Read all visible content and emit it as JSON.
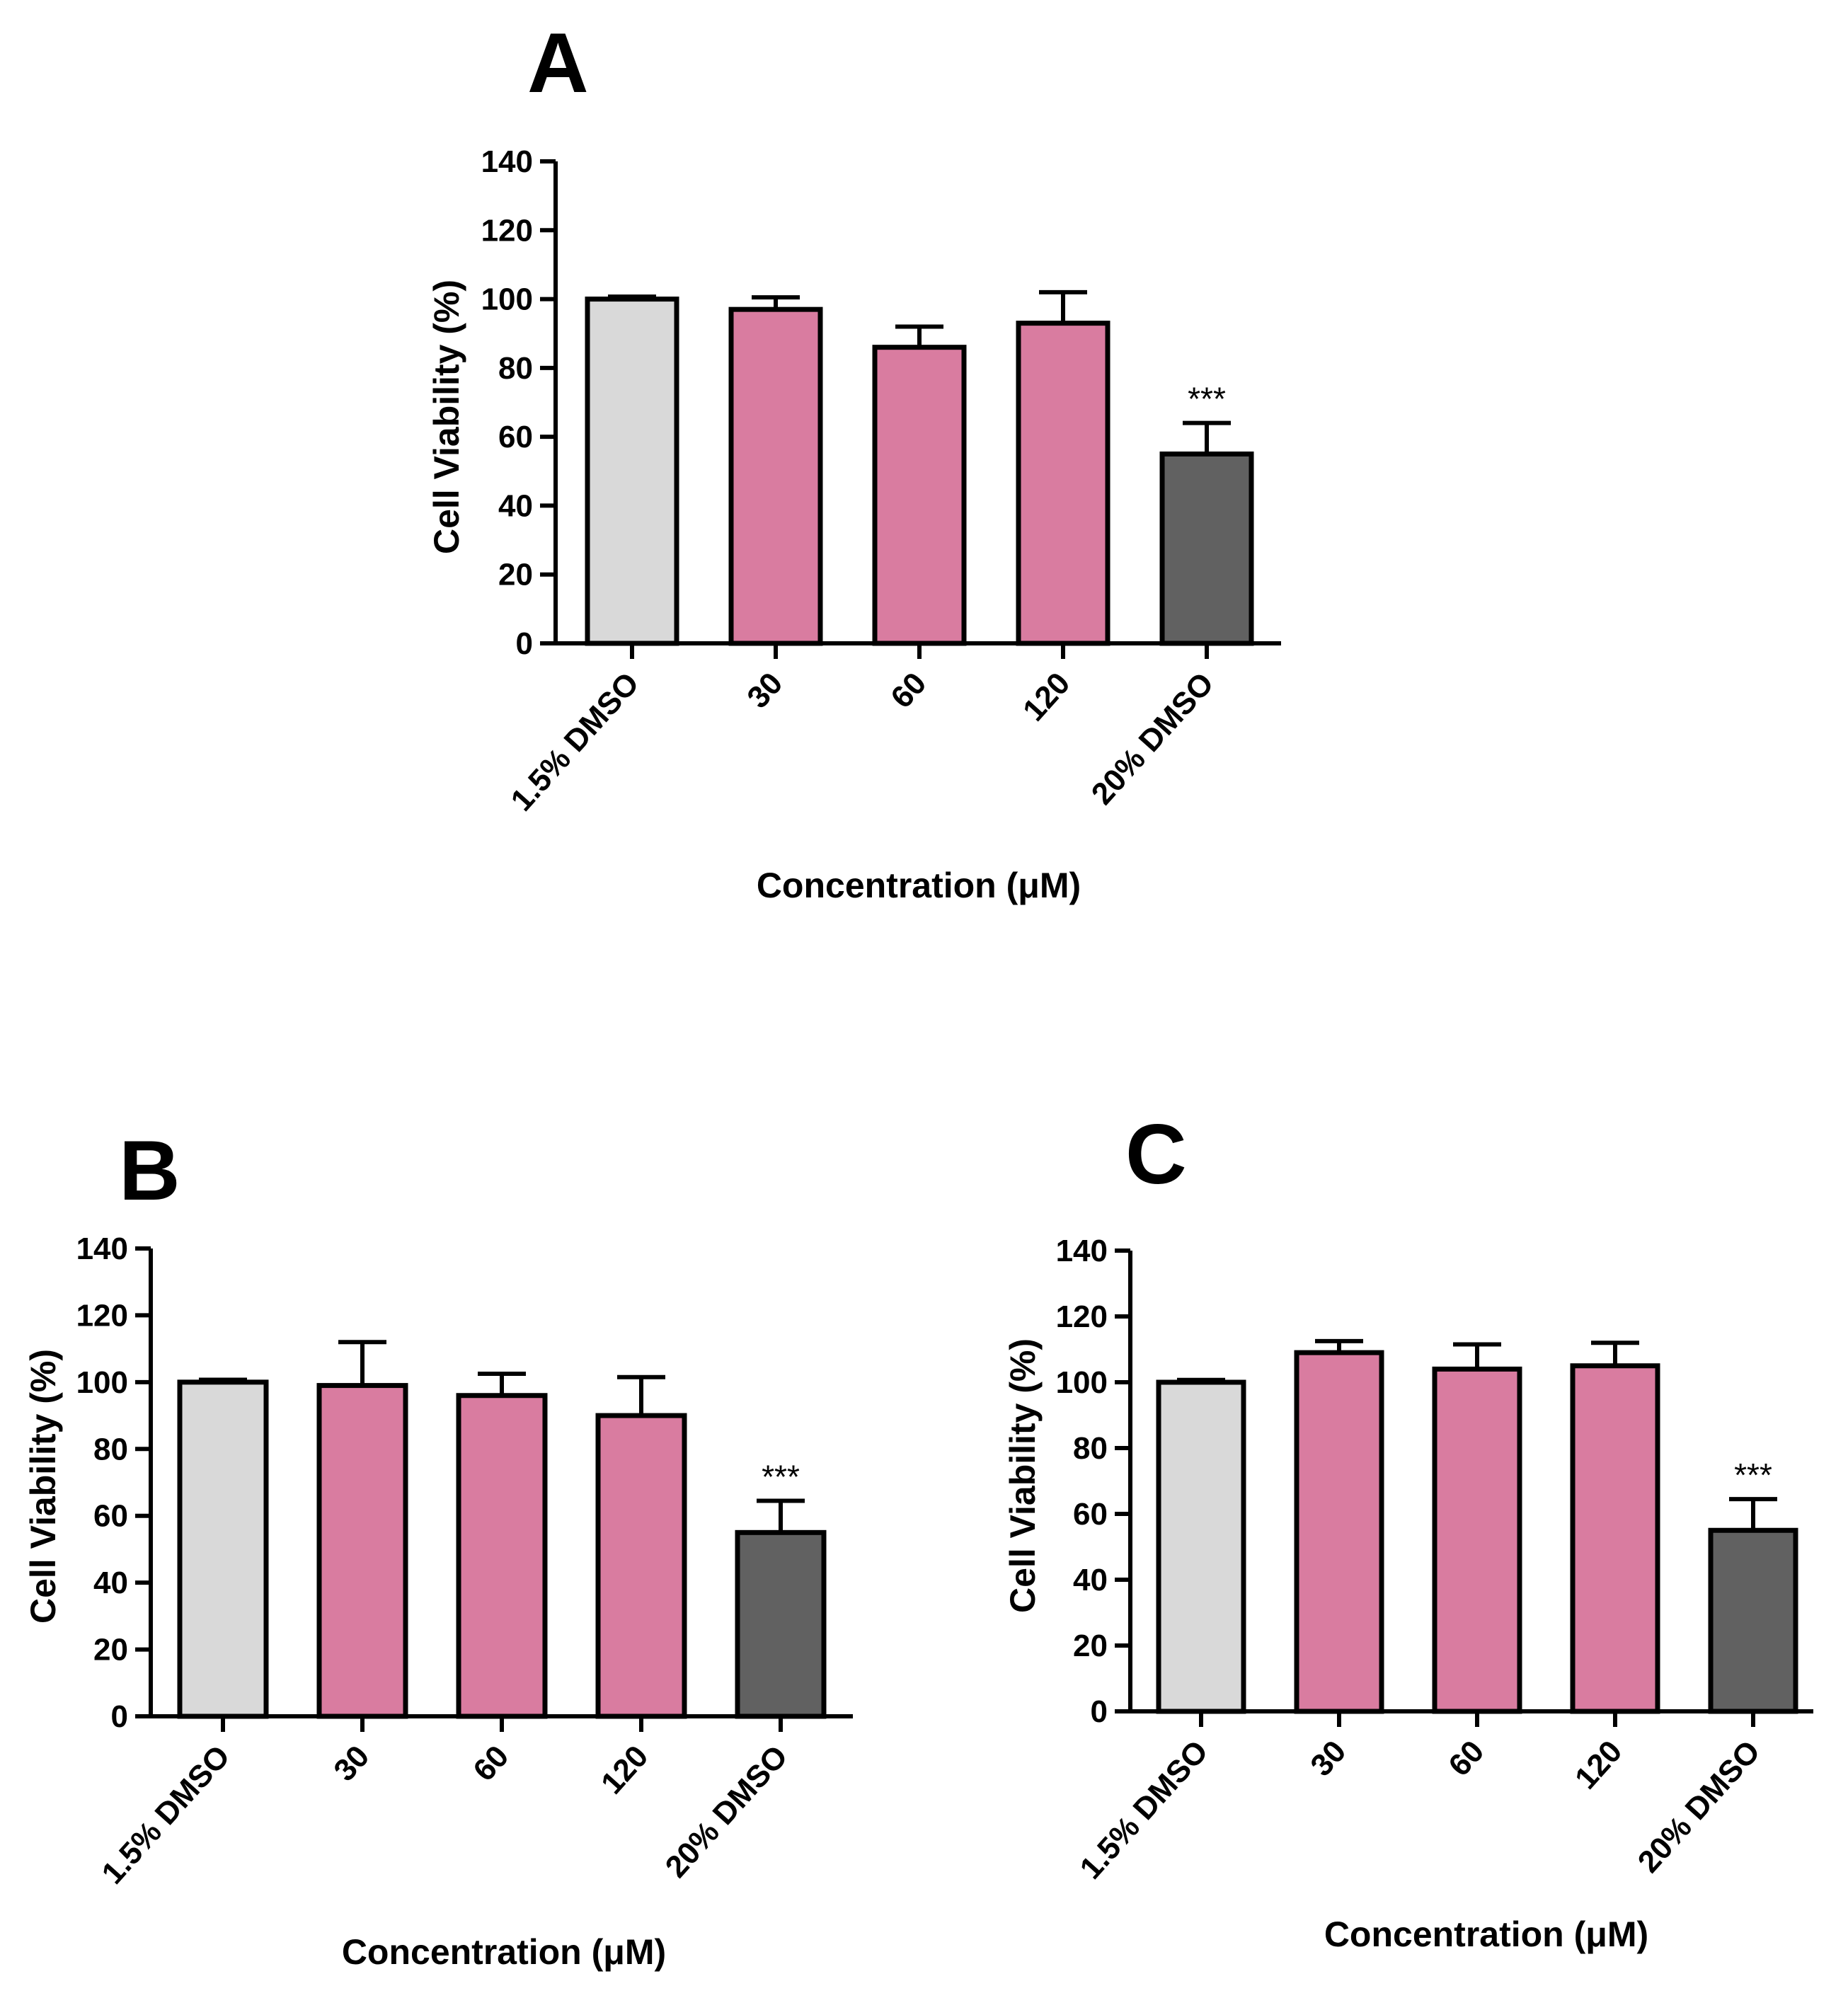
{
  "colors": {
    "control": "#d9d9d9",
    "treatment": "#d97ca0",
    "positive": "#616161",
    "stroke": "#000000"
  },
  "chart_data": [
    {
      "panel": "A",
      "type": "bar",
      "title": "",
      "categories": [
        "1.5% DMSO",
        "30",
        "60",
        "120",
        "20% DMSO"
      ],
      "values": [
        100,
        97,
        86,
        93,
        55
      ],
      "errors": [
        0.7,
        3.5,
        6,
        9,
        9
      ],
      "significance": [
        "",
        "",
        "",
        "",
        "***"
      ],
      "bar_colors": [
        "control",
        "treatment",
        "treatment",
        "treatment",
        "positive"
      ],
      "xlabel": "Concentration (μM)",
      "ylabel": "Cell Viability (%)",
      "ylim": [
        0,
        140
      ],
      "yticks": [
        0,
        20,
        40,
        60,
        80,
        100,
        120,
        140
      ]
    },
    {
      "panel": "B",
      "type": "bar",
      "title": "",
      "categories": [
        "1.5% DMSO",
        "30",
        "60",
        "120",
        "20% DMSO"
      ],
      "values": [
        100,
        99,
        96,
        90,
        55
      ],
      "errors": [
        0.7,
        13,
        6.5,
        11.5,
        9.5
      ],
      "significance": [
        "",
        "",
        "",
        "",
        "***"
      ],
      "bar_colors": [
        "control",
        "treatment",
        "treatment",
        "treatment",
        "positive"
      ],
      "xlabel": "Concentration (μM)",
      "ylabel": "Cell Viability (%)",
      "ylim": [
        0,
        140
      ],
      "yticks": [
        0,
        20,
        40,
        60,
        80,
        100,
        120,
        140
      ]
    },
    {
      "panel": "C",
      "type": "bar",
      "title": "",
      "categories": [
        "1.5% DMSO",
        "30",
        "60",
        "120",
        "20% DMSO"
      ],
      "values": [
        100,
        109,
        104,
        105,
        55
      ],
      "errors": [
        0.7,
        3.5,
        7.5,
        7,
        9.5
      ],
      "significance": [
        "",
        "",
        "",
        "",
        "***"
      ],
      "bar_colors": [
        "control",
        "treatment",
        "treatment",
        "treatment",
        "positive"
      ],
      "xlabel": "Concentration (μM)",
      "ylabel": "Cell Viability (%)",
      "ylim": [
        0,
        140
      ],
      "yticks": [
        0,
        20,
        40,
        60,
        80,
        100,
        120,
        140
      ]
    }
  ]
}
